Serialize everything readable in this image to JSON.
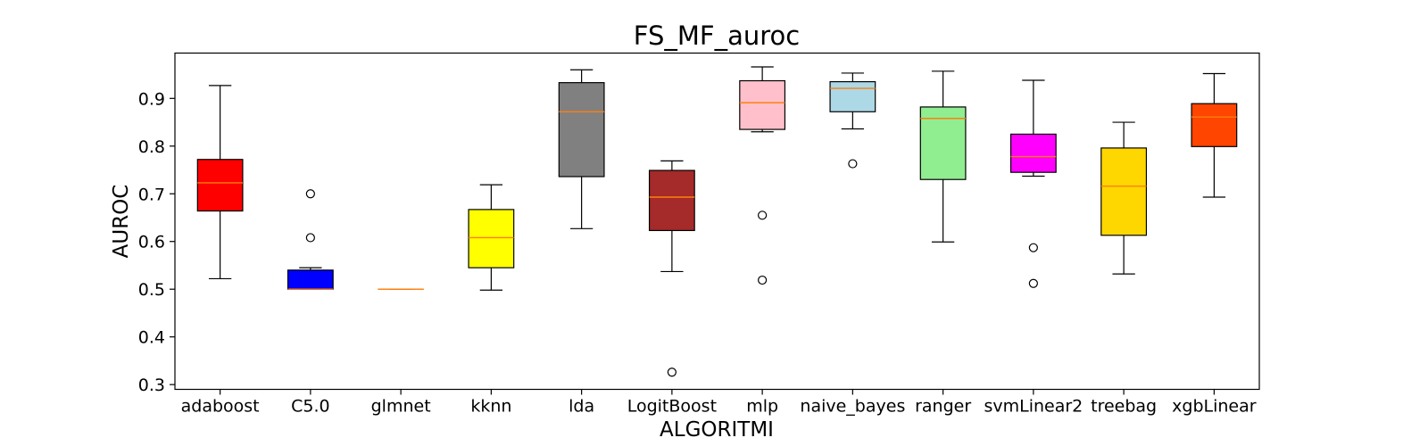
{
  "chart_data": {
    "type": "boxplot",
    "title": "FS_MF_auroc",
    "xlabel": "ALGORITMI",
    "ylabel": "AUROC",
    "ylim": [
      0.29,
      0.995
    ],
    "yticks": [
      "0.3",
      "0.4",
      "0.5",
      "0.6",
      "0.7",
      "0.8",
      "0.9"
    ],
    "grid": false,
    "median_color": "#ff7f0e",
    "boxes": [
      {
        "name": "adaboost",
        "color": "#ff0000",
        "whislo": 0.522,
        "q1": 0.664,
        "med": 0.723,
        "q3": 0.772,
        "whishi": 0.927,
        "fliers": []
      },
      {
        "name": "C5.0",
        "color": "#0000ff",
        "whislo": 0.5,
        "q1": 0.5,
        "med": 0.5,
        "q3": 0.54,
        "whishi": 0.545,
        "fliers": [
          0.7,
          0.608
        ]
      },
      {
        "name": "glmnet",
        "color": "#ff8c00",
        "whislo": 0.5,
        "q1": 0.5,
        "med": 0.5,
        "q3": 0.5,
        "whishi": 0.5,
        "fliers": []
      },
      {
        "name": "kknn",
        "color": "#ffff00",
        "whislo": 0.498,
        "q1": 0.545,
        "med": 0.608,
        "q3": 0.667,
        "whishi": 0.719,
        "fliers": []
      },
      {
        "name": "lda",
        "color": "#808080",
        "whislo": 0.627,
        "q1": 0.736,
        "med": 0.872,
        "q3": 0.933,
        "whishi": 0.96,
        "fliers": []
      },
      {
        "name": "LogitBoost",
        "color": "#a52a2a",
        "whislo": 0.537,
        "q1": 0.623,
        "med": 0.693,
        "q3": 0.749,
        "whishi": 0.769,
        "fliers": [
          0.326
        ]
      },
      {
        "name": "mlp",
        "color": "#ffc0cb",
        "whislo": 0.83,
        "q1": 0.835,
        "med": 0.891,
        "q3": 0.937,
        "whishi": 0.966,
        "fliers": [
          0.655,
          0.519
        ]
      },
      {
        "name": "naive_bayes",
        "color": "#add8e6",
        "whislo": 0.836,
        "q1": 0.872,
        "med": 0.921,
        "q3": 0.935,
        "whishi": 0.953,
        "fliers": [
          0.763
        ]
      },
      {
        "name": "ranger",
        "color": "#90ee90",
        "whislo": 0.599,
        "q1": 0.73,
        "med": 0.858,
        "q3": 0.882,
        "whishi": 0.957,
        "fliers": []
      },
      {
        "name": "svmLinear2",
        "color": "#ff00ff",
        "whislo": 0.737,
        "q1": 0.745,
        "med": 0.778,
        "q3": 0.825,
        "whishi": 0.938,
        "fliers": [
          0.587,
          0.512
        ]
      },
      {
        "name": "treebag",
        "color": "#ffd700",
        "whislo": 0.532,
        "q1": 0.613,
        "med": 0.716,
        "q3": 0.796,
        "whishi": 0.85,
        "fliers": []
      },
      {
        "name": "xgbLinear",
        "color": "#ff4500",
        "whislo": 0.693,
        "q1": 0.799,
        "med": 0.861,
        "q3": 0.889,
        "whishi": 0.952,
        "fliers": []
      }
    ]
  }
}
